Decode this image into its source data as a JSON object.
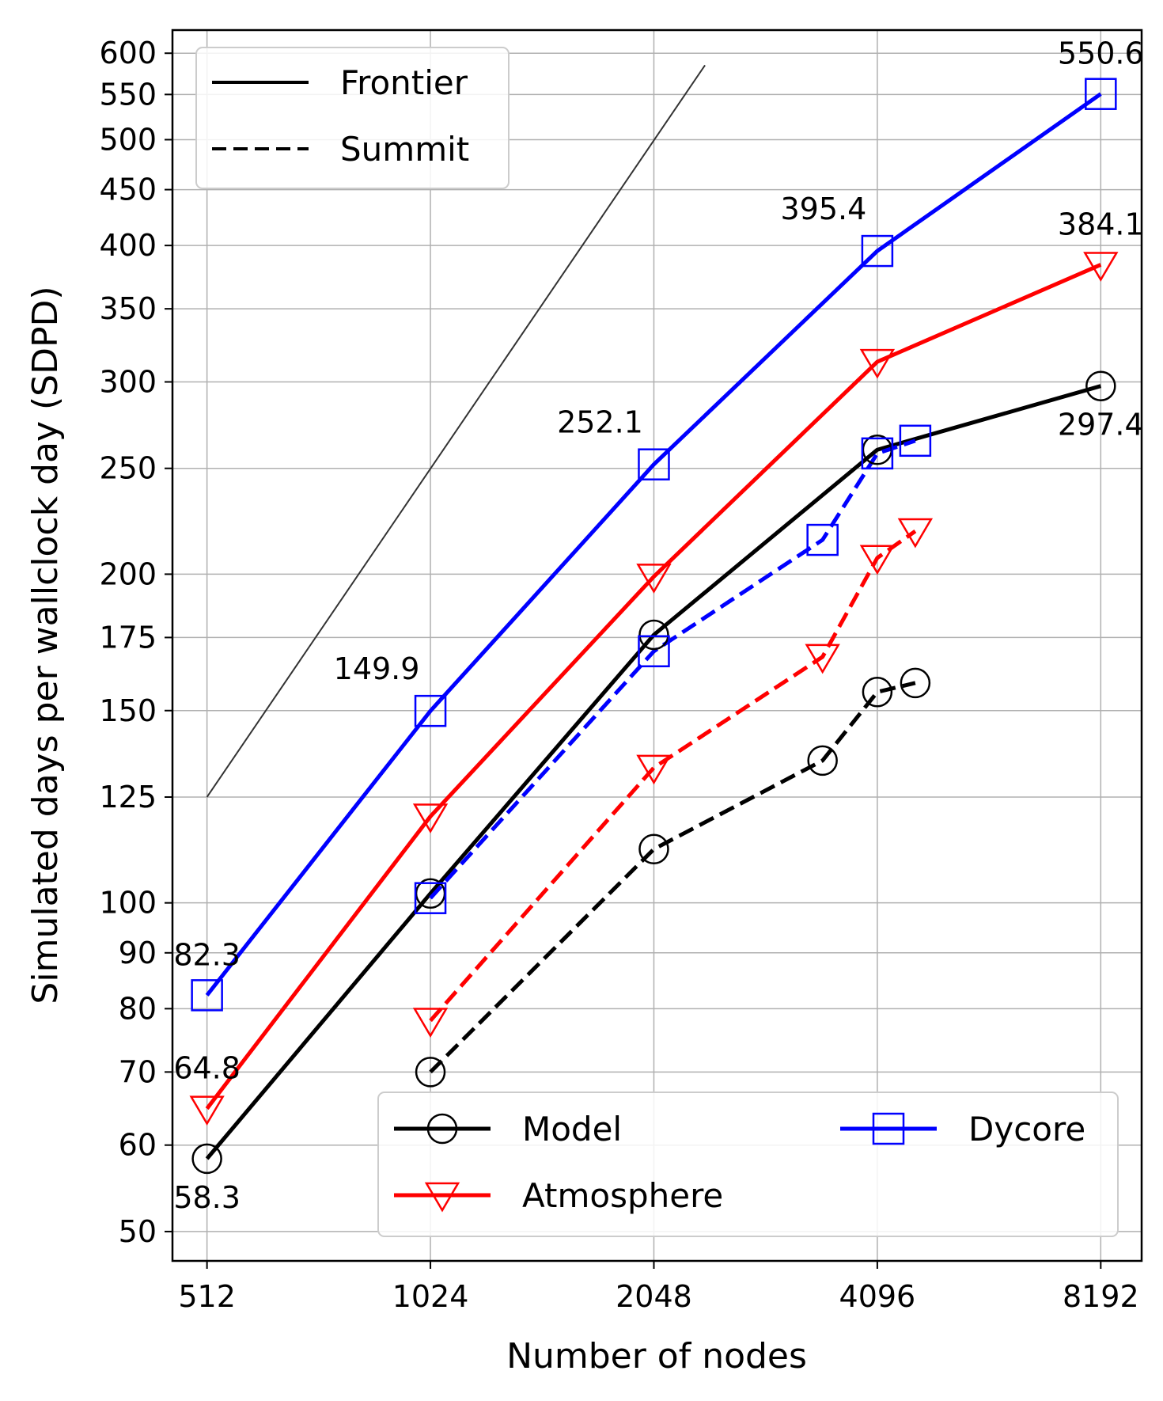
{
  "chart_data": {
    "type": "line",
    "xscale": "log2",
    "yscale": "log",
    "xlabel": "Number of nodes",
    "ylabel": "Simulated days per wallclock day (SDPD)",
    "xlim": [
      460,
      9300
    ],
    "ylim": [
      47,
      630
    ],
    "xticks": [
      512,
      1024,
      2048,
      4096,
      8192
    ],
    "xtick_labels": [
      "512",
      "1024",
      "2048",
      "4096",
      "8192"
    ],
    "yticks": [
      50,
      60,
      70,
      80,
      90,
      100,
      125,
      150,
      175,
      200,
      250,
      300,
      350,
      400,
      450,
      500,
      550,
      600
    ],
    "ytick_labels": [
      "50",
      "60",
      "70",
      "80",
      "90",
      "100",
      "125",
      "150",
      "175",
      "200",
      "250",
      "300",
      "350",
      "400",
      "450",
      "500",
      "550",
      "600"
    ],
    "grid": true,
    "series": [
      {
        "name": "Model",
        "machine": "Frontier",
        "color": "#000000",
        "marker": "circle",
        "linestyle": "solid",
        "x": [
          512,
          1024,
          2048,
          4096,
          8192
        ],
        "y": [
          58.3,
          102,
          176,
          260,
          297.4
        ]
      },
      {
        "name": "Atmosphere",
        "machine": "Frontier",
        "color": "#ff0000",
        "marker": "triangle-down",
        "linestyle": "solid",
        "x": [
          512,
          1024,
          2048,
          4096,
          8192
        ],
        "y": [
          64.8,
          120,
          199,
          313,
          384.1
        ]
      },
      {
        "name": "Dycore",
        "machine": "Frontier",
        "color": "#0000ff",
        "marker": "square",
        "linestyle": "solid",
        "x": [
          512,
          1024,
          2048,
          4096,
          8192
        ],
        "y": [
          82.3,
          149.9,
          252.1,
          395.4,
          550.6
        ]
      },
      {
        "name": "Model",
        "machine": "Summit",
        "color": "#000000",
        "marker": "circle",
        "linestyle": "dashed",
        "x": [
          1024,
          2048,
          3456,
          4096,
          4608
        ],
        "y": [
          70,
          112,
          135,
          156,
          159
        ]
      },
      {
        "name": "Atmosphere",
        "machine": "Summit",
        "color": "#ff0000",
        "marker": "triangle-down",
        "linestyle": "dashed",
        "x": [
          1024,
          2048,
          3456,
          4096,
          4608
        ],
        "y": [
          78,
          133,
          168,
          207,
          219
        ]
      },
      {
        "name": "Dycore",
        "machine": "Summit",
        "color": "#0000ff",
        "marker": "square",
        "linestyle": "dashed",
        "x": [
          1024,
          2048,
          3456,
          4096,
          4608
        ],
        "y": [
          101,
          170,
          215,
          258,
          265
        ]
      }
    ],
    "ideal_line": {
      "color": "#333333",
      "x": [
        512,
        2400
      ],
      "y": [
        125,
        585
      ]
    },
    "annotations": [
      {
        "text": "58.3",
        "x": 512,
        "y": 58.3,
        "position": "below"
      },
      {
        "text": "64.8",
        "x": 512,
        "y": 64.8,
        "position": "above"
      },
      {
        "text": "82.3",
        "x": 512,
        "y": 82.3,
        "position": "above"
      },
      {
        "text": "149.9",
        "x": 1024,
        "y": 149.9,
        "position": "above-left"
      },
      {
        "text": "252.1",
        "x": 2048,
        "y": 252.1,
        "position": "above-left"
      },
      {
        "text": "395.4",
        "x": 4096,
        "y": 395.4,
        "position": "above-left"
      },
      {
        "text": "550.6",
        "x": 8192,
        "y": 550.6,
        "position": "above"
      },
      {
        "text": "384.1",
        "x": 8192,
        "y": 384.1,
        "position": "above"
      },
      {
        "text": "297.4",
        "x": 8192,
        "y": 297.4,
        "position": "below"
      }
    ],
    "legend_style": {
      "location": "upper-left",
      "entries": [
        {
          "label": "Frontier",
          "linestyle": "solid"
        },
        {
          "label": "Summit",
          "linestyle": "dashed"
        }
      ]
    },
    "legend_quantity": {
      "location": "lower-right",
      "entries": [
        {
          "label": "Model",
          "color": "#000000",
          "marker": "circle"
        },
        {
          "label": "Dycore",
          "color": "#0000ff",
          "marker": "square"
        },
        {
          "label": "Atmosphere",
          "color": "#ff0000",
          "marker": "triangle-down"
        }
      ]
    }
  }
}
